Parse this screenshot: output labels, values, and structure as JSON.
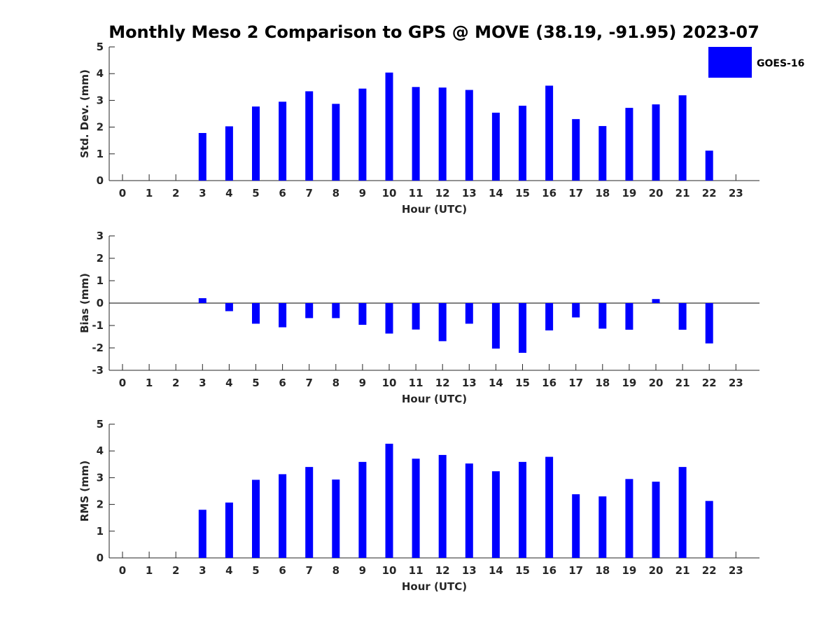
{
  "chart_data": {
    "title": "Monthly Meso 2 Comparison to GPS @ MOVE (38.19, -91.95) 2023-07",
    "legend": {
      "label": "GOES-16",
      "placement": "top-right"
    },
    "bar_color": "#0000ff",
    "panels": [
      {
        "type": "bar",
        "xlabel": "Hour (UTC)",
        "ylabel": "Std. Dev. (mm)",
        "ylim": [
          0,
          5
        ],
        "yticks": [
          0,
          1,
          2,
          3,
          4,
          5
        ],
        "categories": [
          0,
          1,
          2,
          3,
          4,
          5,
          6,
          7,
          8,
          9,
          10,
          11,
          12,
          13,
          14,
          15,
          16,
          17,
          18,
          19,
          20,
          21,
          22,
          23
        ],
        "series": [
          {
            "name": "GOES-16",
            "values": [
              null,
              null,
              null,
              1.78,
              2.03,
              2.77,
              2.95,
              3.34,
              2.87,
              3.44,
              4.04,
              3.5,
              3.48,
              3.39,
              2.54,
              2.8,
              3.55,
              2.3,
              2.04,
              2.72,
              2.85,
              3.19,
              1.12,
              null
            ]
          }
        ]
      },
      {
        "type": "bar",
        "xlabel": "Hour (UTC)",
        "ylabel": "Bias (mm)",
        "ylim": [
          -3,
          3
        ],
        "yticks": [
          -3,
          -2,
          -1,
          0,
          1,
          2,
          3
        ],
        "zero_line": true,
        "categories": [
          0,
          1,
          2,
          3,
          4,
          5,
          6,
          7,
          8,
          9,
          10,
          11,
          12,
          13,
          14,
          15,
          16,
          17,
          18,
          19,
          20,
          21,
          22,
          23
        ],
        "series": [
          {
            "name": "GOES-16",
            "values": [
              null,
              null,
              null,
              0.22,
              -0.36,
              -0.92,
              -1.08,
              -0.67,
              -0.67,
              -0.97,
              -1.36,
              -1.18,
              -1.7,
              -0.92,
              -2.03,
              -2.22,
              -1.22,
              -0.64,
              -1.14,
              -1.19,
              0.18,
              -1.19,
              -1.8,
              null
            ]
          }
        ]
      },
      {
        "type": "bar",
        "xlabel": "Hour (UTC)",
        "ylabel": "RMS (mm)",
        "ylim": [
          0,
          5
        ],
        "yticks": [
          0,
          1,
          2,
          3,
          4,
          5
        ],
        "categories": [
          0,
          1,
          2,
          3,
          4,
          5,
          6,
          7,
          8,
          9,
          10,
          11,
          12,
          13,
          14,
          15,
          16,
          17,
          18,
          19,
          20,
          21,
          22,
          23
        ],
        "series": [
          {
            "name": "GOES-16",
            "values": [
              null,
              null,
              null,
              1.8,
              2.07,
              2.92,
              3.13,
              3.4,
              2.93,
              3.59,
              4.27,
              3.71,
              3.85,
              3.53,
              3.24,
              3.59,
              3.78,
              2.38,
              2.3,
              2.95,
              2.85,
              3.4,
              2.13,
              null
            ]
          }
        ]
      }
    ]
  }
}
